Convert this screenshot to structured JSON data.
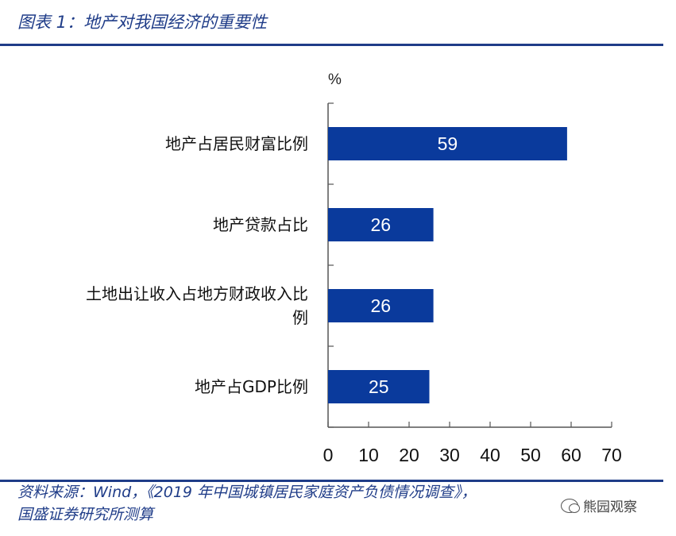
{
  "figure_title": "图表 1：地产对我国经济的重要性",
  "source_line1": "资料来源：Wind，《2019 年中国城镇居民家庭资产负债情况调查》，",
  "source_line2": "国盛证券研究所测算",
  "watermark": "熊园观察",
  "colors": {
    "bar": "#0a3a9c",
    "accent": "#1f3c88",
    "axis": "#555555"
  },
  "chart_data": {
    "type": "bar",
    "orientation": "horizontal",
    "unit": "%",
    "categories": [
      [
        "地产占居民财富比例"
      ],
      [
        "地产贷款占比"
      ],
      [
        "土地出让收入占地方财政收入比",
        "例"
      ],
      [
        "地产占GDP比例"
      ]
    ],
    "values": [
      59,
      26,
      26,
      25
    ],
    "data_labels": [
      "59",
      "26",
      "26",
      "25"
    ],
    "xlim": [
      0,
      70
    ],
    "xticks": [
      0,
      10,
      20,
      30,
      40,
      50,
      60,
      70
    ],
    "grid": false,
    "legend": false
  }
}
